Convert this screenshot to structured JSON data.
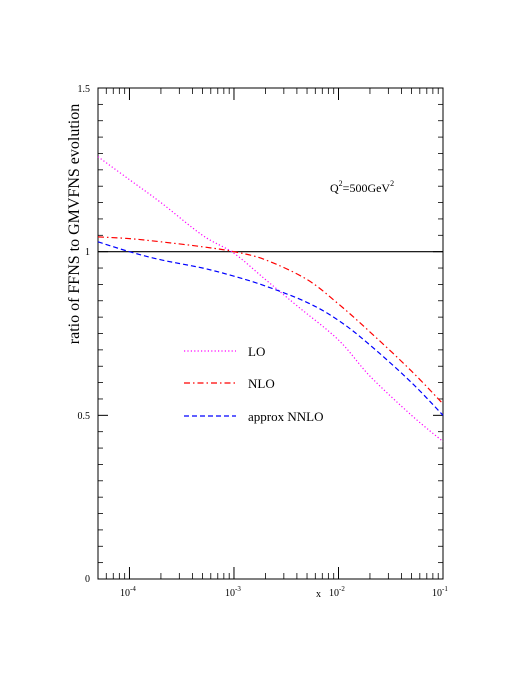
{
  "chart_data": {
    "type": "line",
    "title": "",
    "xlabel": "x",
    "ylabel": "ratio of FFNS to GMVFNS evolution",
    "x_scale": "log",
    "xlim": [
      5e-05,
      0.1
    ],
    "ylim": [
      0,
      1.5
    ],
    "x_ticks": [
      {
        "base": "10",
        "exp": "-4",
        "value": 0.0001
      },
      {
        "base": "10",
        "exp": "-3",
        "value": 0.001
      },
      {
        "base": "10",
        "exp": "-2",
        "value": 0.01
      },
      {
        "base": "10",
        "exp": "-1",
        "value": 0.1
      }
    ],
    "y_ticks": [
      {
        "label": "0",
        "value": 0
      },
      {
        "label": "0.5",
        "value": 0.5
      },
      {
        "label": "1",
        "value": 1.0
      },
      {
        "label": "1.5",
        "value": 1.5
      }
    ],
    "annotation": {
      "q": "Q",
      "q_sup": "2",
      "mid": "=500GeV",
      "unit_sup": "2"
    },
    "reference_line": {
      "y": 1.0
    },
    "grid": false,
    "legend_position": "center-left",
    "series": [
      {
        "name": "LO",
        "color": "#ff00ff",
        "dash": "dotted",
        "points": [
          [
            5e-05,
            1.29
          ],
          [
            0.0001,
            1.22
          ],
          [
            0.0002,
            1.15
          ],
          [
            0.0005,
            1.05
          ],
          [
            0.001,
            0.995
          ],
          [
            0.002,
            0.915
          ],
          [
            0.004,
            0.835
          ],
          [
            0.01,
            0.73
          ],
          [
            0.02,
            0.62
          ],
          [
            0.05,
            0.5
          ],
          [
            0.1,
            0.42
          ]
        ]
      },
      {
        "name": "NLO",
        "color": "#ff0000",
        "dash": "dashdot",
        "points": [
          [
            5e-05,
            1.045
          ],
          [
            0.0001,
            1.04
          ],
          [
            0.0002,
            1.03
          ],
          [
            0.0005,
            1.015
          ],
          [
            0.001,
            1.0
          ],
          [
            0.002,
            0.975
          ],
          [
            0.005,
            0.915
          ],
          [
            0.01,
            0.84
          ],
          [
            0.02,
            0.755
          ],
          [
            0.05,
            0.635
          ],
          [
            0.1,
            0.535
          ]
        ]
      },
      {
        "name": "approx NNLO",
        "color": "#0000ff",
        "dash": "dashed",
        "points": [
          [
            5e-05,
            1.03
          ],
          [
            0.0001,
            1.0
          ],
          [
            0.0002,
            0.975
          ],
          [
            0.0005,
            0.95
          ],
          [
            0.001,
            0.925
          ],
          [
            0.002,
            0.895
          ],
          [
            0.005,
            0.845
          ],
          [
            0.01,
            0.79
          ],
          [
            0.02,
            0.715
          ],
          [
            0.05,
            0.6
          ],
          [
            0.1,
            0.5
          ]
        ]
      }
    ]
  }
}
